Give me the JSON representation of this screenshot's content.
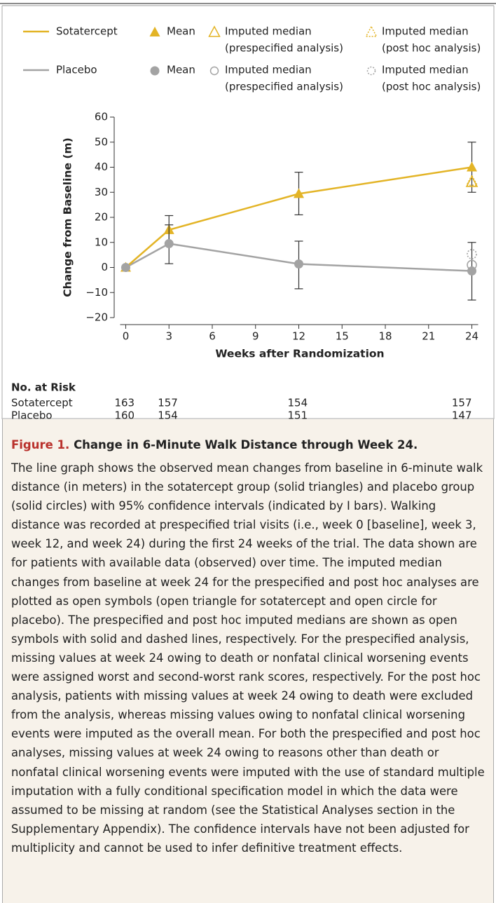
{
  "chart_data": {
    "type": "line",
    "xlabel": "Weeks after Randomization",
    "ylabel": "Change from Baseline (m)",
    "x": [
      0,
      3,
      12,
      24
    ],
    "xlim": [
      -0.8,
      24.8
    ],
    "xticks": [
      0,
      3,
      6,
      9,
      12,
      15,
      18,
      21,
      24
    ],
    "ylim": [
      -20,
      60
    ],
    "yticks": [
      {
        "value": -20,
        "label": "−20"
      },
      {
        "value": -10,
        "label": "−10"
      },
      0,
      10,
      20,
      30,
      40,
      50,
      60
    ],
    "series": [
      {
        "name": "Sotatercept",
        "color": "#e3b426",
        "marker": "triangle",
        "mean_label": "Mean",
        "values": [
          0,
          15,
          29.4,
          40
        ],
        "ci_low": [
          null,
          9,
          21,
          30
        ],
        "ci_high": [
          null,
          20.7,
          38,
          50
        ],
        "imputed": [
          {
            "label": [
              "Imputed median",
              "(prespecified analysis)"
            ],
            "x": 24,
            "value": 34,
            "dashed": false
          },
          {
            "label": [
              "Imputed median",
              "(post hoc analysis)"
            ],
            "x": 24,
            "value": 34.5,
            "dashed": true
          }
        ]
      },
      {
        "name": "Placebo",
        "color": "#a3a3a3",
        "marker": "circle",
        "mean_label": "Mean",
        "values": [
          0,
          9.5,
          1.4,
          -1.4
        ],
        "ci_low": [
          null,
          1.5,
          -8.5,
          -13
        ],
        "ci_high": [
          null,
          17,
          10.5,
          10
        ],
        "imputed": [
          {
            "label": [
              "Imputed median",
              "(prespecified analysis)"
            ],
            "x": 24,
            "value": 1,
            "dashed": false
          },
          {
            "label": [
              "Imputed median",
              "(post hoc analysis)"
            ],
            "x": 24,
            "value": 5.3,
            "dashed": true
          }
        ]
      }
    ],
    "risk_table": {
      "title": "No. at Risk",
      "rows": [
        {
          "label": "Sotatercept",
          "values": [
            163,
            157,
            154,
            157
          ]
        },
        {
          "label": "Placebo",
          "values": [
            160,
            154,
            151,
            147
          ]
        }
      ]
    }
  },
  "caption": {
    "label": "Figure 1.",
    "title": "Change in 6-Minute Walk Distance through Week 24.",
    "text": "The line graph shows the observed mean changes from baseline in 6-minute walk distance (in meters) in the sotatercept group (solid triangles) and placebo group (solid circles) with 95% confidence intervals (indicated by I bars). Walking distance was recorded at prespecified trial visits (i.e., week 0 [baseline], week 3, week 12, and week 24) during the first 24 weeks of the trial. The data shown are for patients with available data (observed) over time. The imputed median changes from baseline at week 24 for the prespecified and post hoc analyses are plotted as open symbols (open triangle for sotatercept and open circle for placebo). The prespecified and post hoc imputed medians are shown as open symbols with solid and dashed lines, respectively. For the prespecified analysis, missing values at week 24 owing to death or nonfatal clinical worsening events were assigned worst and second-worst rank scores, respectively. For the post hoc analysis, patients with missing values at week 24 owing to death were excluded from the analysis, whereas missing values owing to nonfatal clinical worsening events were imputed as the overall mean. For both the prespecified and post hoc analyses, missing values at week 24 owing to reasons other than death or nonfatal clinical worsening events were imputed with the use of standard multiple imputation with a fully conditional specification model in which the data were assumed to be missing at random (see the Statistical Analyses section in the Supplementary Appendix). The confidence intervals have not been adjusted for multiplicity and cannot be used to infer definitive treatment effects."
  }
}
